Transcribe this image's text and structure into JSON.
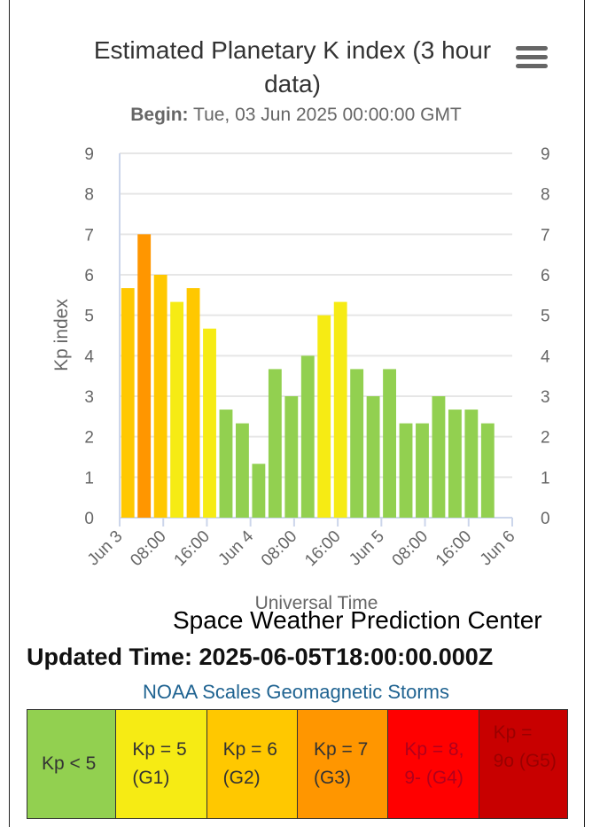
{
  "chart_data": {
    "type": "bar",
    "title": "Estimated Planetary K index (3 hour data)",
    "subtitle_label": "Begin:",
    "subtitle_value": "Tue, 03 Jun 2025 00:00:00 GMT",
    "xlabel": "Universal Time",
    "ylabel": "Kp index",
    "ylim": [
      0,
      9
    ],
    "yticks": [
      "0",
      "1",
      "2",
      "3",
      "4",
      "5",
      "6",
      "7",
      "8",
      "9"
    ],
    "x_start_hours": 0,
    "x_end_hours": 72,
    "bar_interval_hours": 3,
    "xticks": [
      {
        "label": "Jun 3",
        "hour": 0
      },
      {
        "label": "08:00",
        "hour": 8
      },
      {
        "label": "16:00",
        "hour": 16
      },
      {
        "label": "Jun 4",
        "hour": 24
      },
      {
        "label": "08:00",
        "hour": 32
      },
      {
        "label": "16:00",
        "hour": 40
      },
      {
        "label": "Jun 5",
        "hour": 48
      },
      {
        "label": "08:00",
        "hour": 56
      },
      {
        "label": "16:00",
        "hour": 64
      },
      {
        "label": "Jun 6",
        "hour": 72
      }
    ],
    "values": [
      5.67,
      7.0,
      6.0,
      5.33,
      5.67,
      4.67,
      2.67,
      2.33,
      1.33,
      3.67,
      3.0,
      4.0,
      5.0,
      5.33,
      3.67,
      3.0,
      3.67,
      2.33,
      2.33,
      3.0,
      2.67,
      2.67,
      2.33
    ],
    "grid": true,
    "legend": "none",
    "colors": {
      "below_5": "#92d050",
      "kp5": "#f6eb14",
      "kp6": "#ffc800",
      "kp7": "#ff9600",
      "kp8_9minus": "#ff0000",
      "kp9o": "#c80000"
    }
  },
  "credits": "Space Weather Prediction Center",
  "updated": "Updated Time: 2025-06-05T18:00:00.000Z",
  "scales": {
    "title": "NOAA Scales Geomagnetic Storms",
    "items": [
      {
        "text": "Kp < 5",
        "bg": "#92d050",
        "color": "#333333"
      },
      {
        "text": "Kp = 5 (G1)",
        "bg": "#f6eb14",
        "color": "#333333"
      },
      {
        "text": "Kp = 6 (G2)",
        "bg": "#ffc800",
        "color": "#333333"
      },
      {
        "text": "Kp = 7 (G3)",
        "bg": "#ff9600",
        "color": "#333333"
      },
      {
        "text": "Kp = 8, 9- (G4)",
        "bg": "#ff0000",
        "color": "#b3001b"
      },
      {
        "text": "Kp = 9o (G5)",
        "bg": "#c80000",
        "color": "#9a0000"
      }
    ]
  }
}
